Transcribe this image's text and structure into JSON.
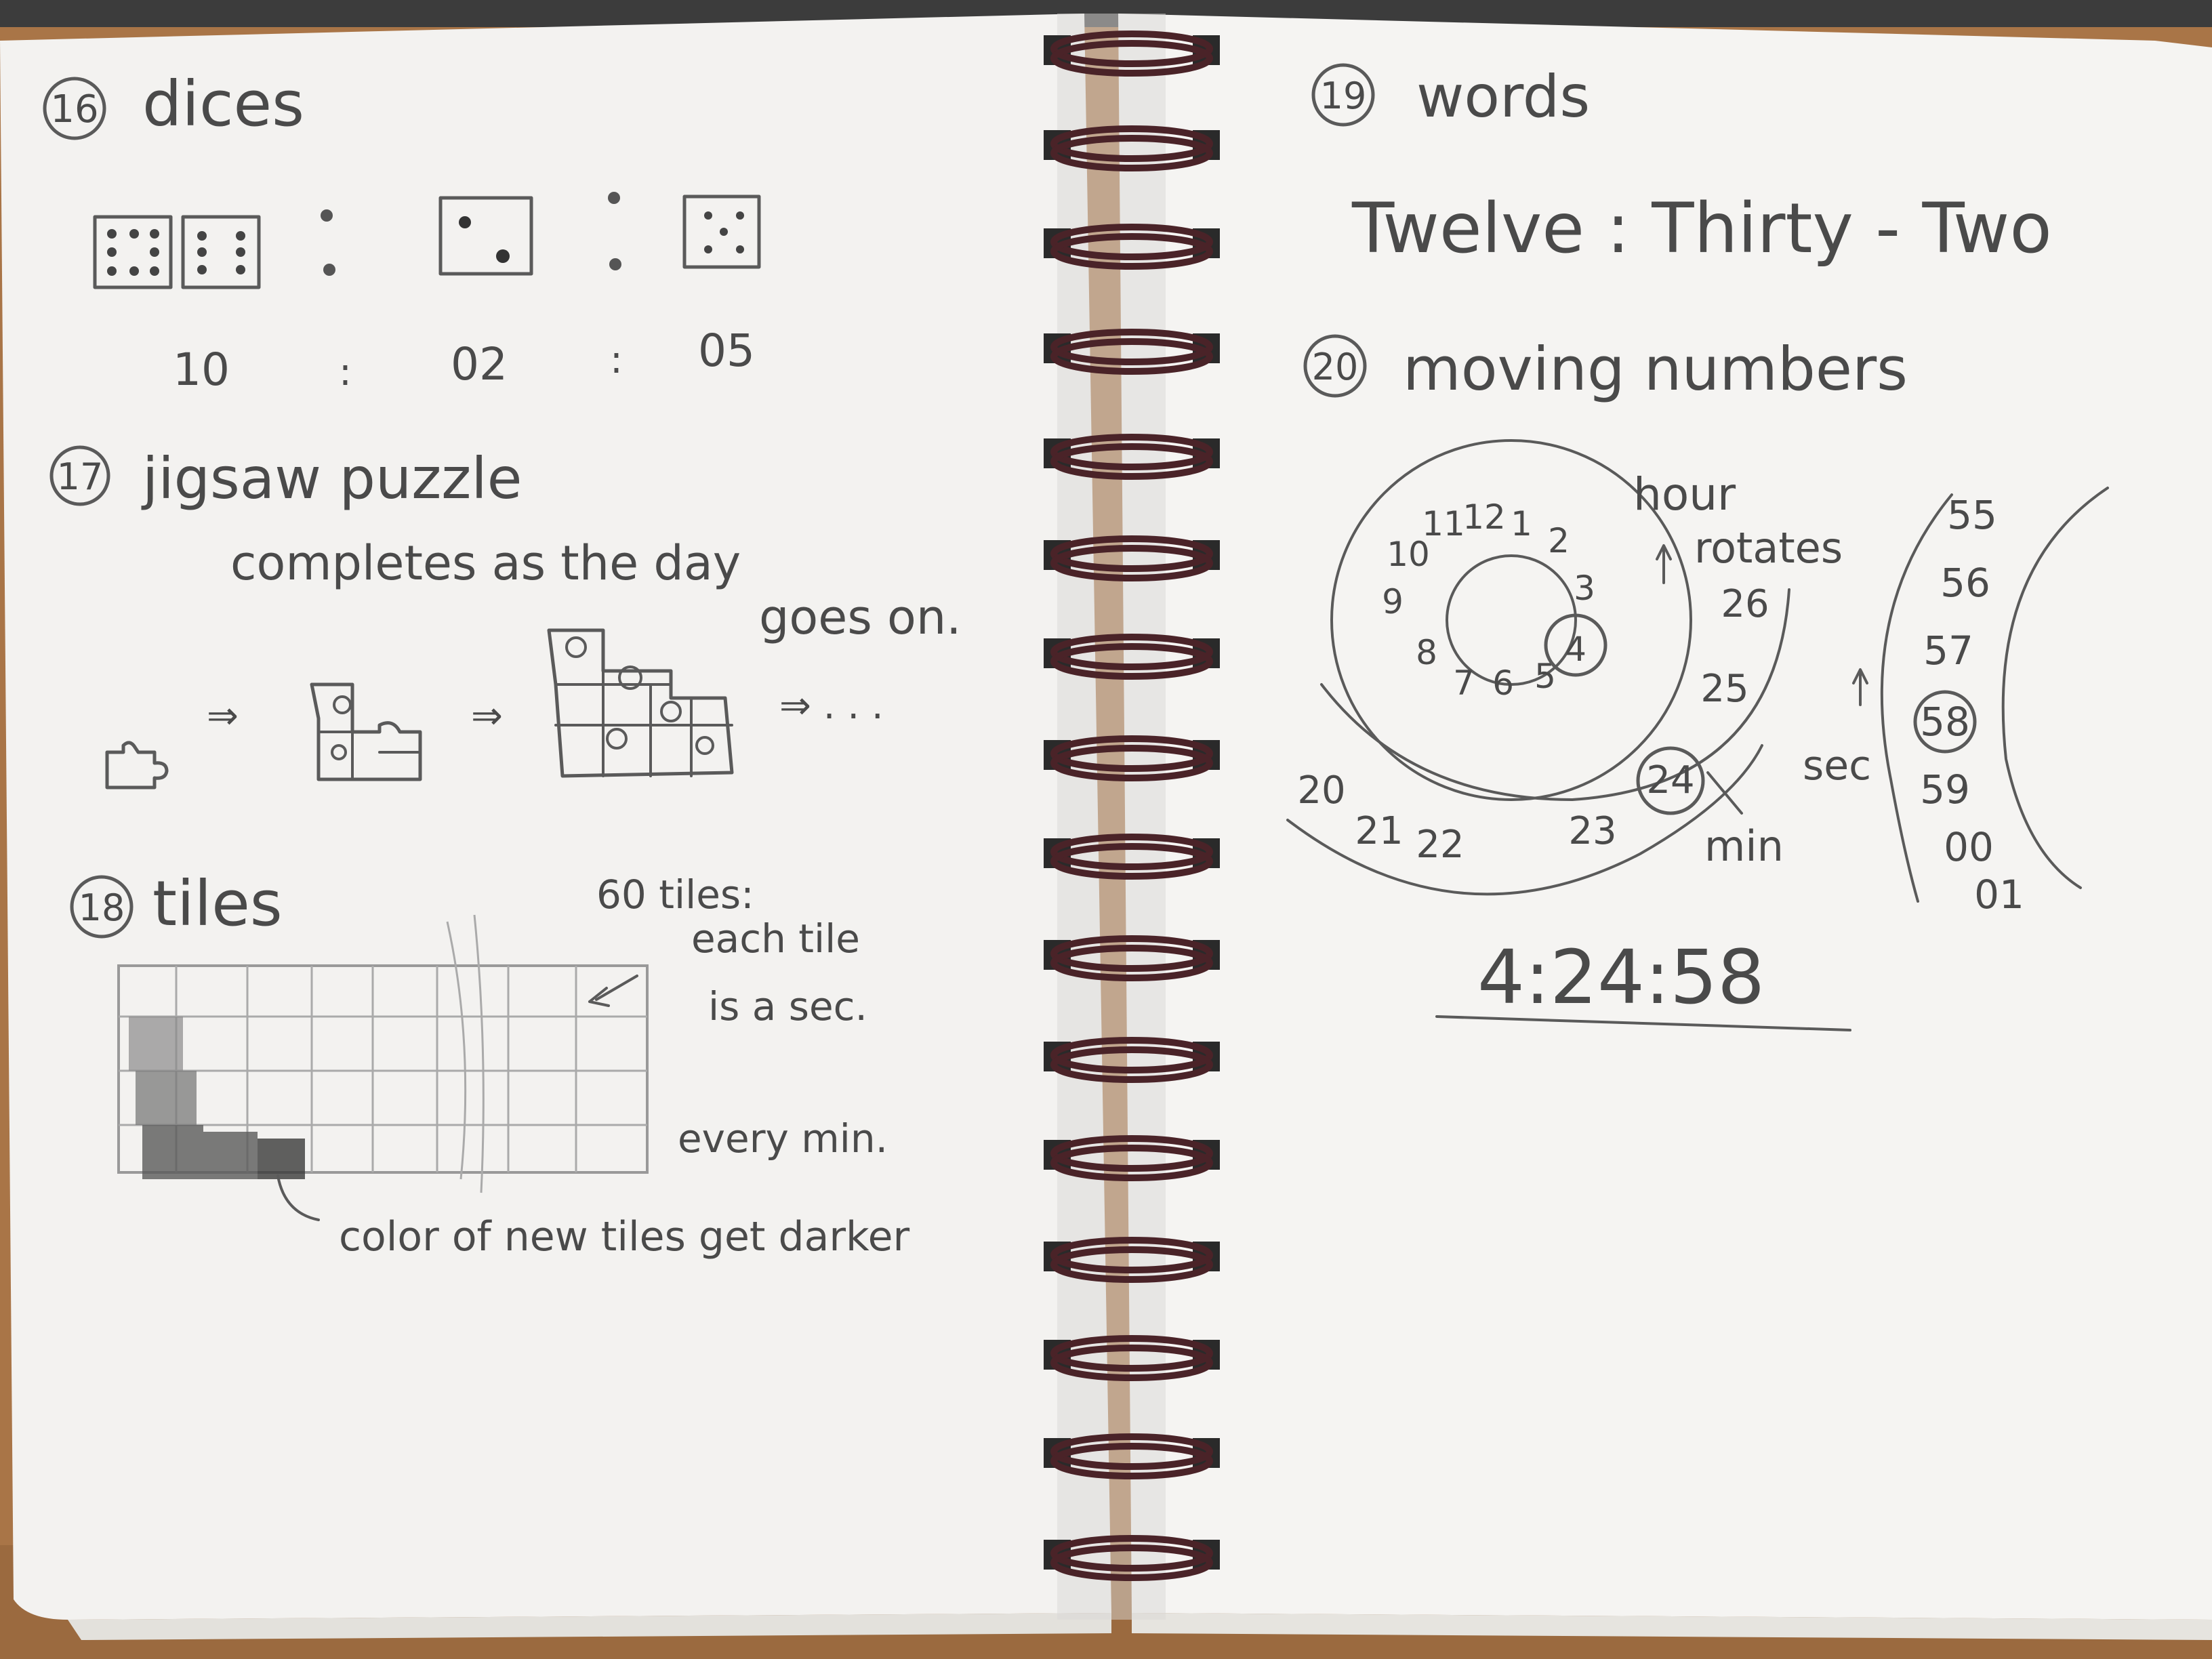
{
  "left_page": {
    "section16": {
      "number": "16",
      "title": "dices",
      "time_hh": "10",
      "time_mm": "02",
      "time_ss": "05",
      "sep": ":"
    },
    "section17": {
      "number": "17",
      "title": "jigsaw puzzle",
      "line1": "completes as the day",
      "line2": "goes on.",
      "arrow": "⇒",
      "ellipsis": "⇒ . . ."
    },
    "section18": {
      "number": "18",
      "title": "tiles",
      "note1": "60 tiles:",
      "note2": "each tile",
      "note3": "is a sec.",
      "every_min": "every min.",
      "color_note": "color of new tiles get darker"
    }
  },
  "right_page": {
    "section19": {
      "number": "19",
      "title": "words",
      "phrase": "Twelve : Thirty - Two"
    },
    "section20": {
      "number": "20",
      "title": "moving numbers",
      "hour_label": "hour",
      "rotates_label": "rotates",
      "min_label": "min",
      "sec_label": "sec",
      "hour_numbers": [
        "10",
        "11",
        "12",
        "1",
        "2",
        "3",
        "4",
        "5",
        "6",
        "7",
        "8",
        "9"
      ],
      "minute_numbers": [
        "20",
        "21",
        "22",
        "23",
        "24",
        "25",
        "26"
      ],
      "second_numbers": [
        "55",
        "56",
        "57",
        "58",
        "59",
        "00",
        "01"
      ],
      "result_time": "4:24:58"
    }
  },
  "colors": {
    "paper": "#f4f3f1",
    "pencil": "#4a4a4a",
    "spiral": "#4a2328",
    "table": "#b07c4e"
  }
}
